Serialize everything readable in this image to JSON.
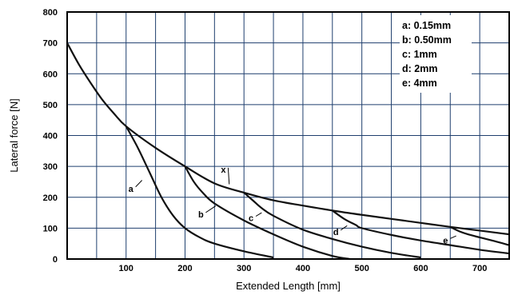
{
  "chart_data": {
    "type": "line",
    "xlabel": "Extended Length [mm]",
    "ylabel": "Lateral force [N]",
    "xlim": [
      0,
      750
    ],
    "ylim": [
      0,
      800
    ],
    "x_ticks": [
      100,
      200,
      300,
      400,
      500,
      600,
      700
    ],
    "y_ticks": [
      0,
      100,
      200,
      300,
      400,
      500,
      600,
      700,
      800
    ],
    "grid": true,
    "legend_position": "top-right",
    "legend": [
      "a: 0.15mm",
      "b: 0.50mm",
      "c: 1mm",
      "d: 2mm",
      "e: 4mm"
    ],
    "series": [
      {
        "name": "x",
        "x": [
          0,
          20,
          40,
          60,
          80,
          100,
          150,
          200,
          250,
          300,
          350,
          400,
          450,
          500,
          550,
          600,
          650,
          700,
          750
        ],
        "y": [
          700,
          630,
          570,
          515,
          470,
          430,
          360,
          300,
          245,
          215,
          190,
          173,
          157,
          143,
          130,
          117,
          104,
          92,
          80
        ]
      },
      {
        "name": "a",
        "x": [
          100,
          120,
          140,
          160,
          180,
          200,
          225,
          250,
          300,
          350
        ],
        "y": [
          430,
          360,
          280,
          200,
          140,
          100,
          70,
          50,
          25,
          5
        ]
      },
      {
        "name": "b",
        "x": [
          200,
          215,
          230,
          250,
          300,
          350,
          400,
          450,
          480
        ],
        "y": [
          300,
          250,
          215,
          180,
          125,
          80,
          40,
          10,
          0
        ]
      },
      {
        "name": "c",
        "x": [
          300,
          315,
          330,
          350,
          400,
          450,
          500,
          550,
          600
        ],
        "y": [
          215,
          190,
          165,
          140,
          95,
          65,
          40,
          20,
          5
        ]
      },
      {
        "name": "d",
        "x": [
          450,
          470,
          490,
          500,
          550,
          600,
          650,
          700,
          750
        ],
        "y": [
          157,
          130,
          110,
          100,
          78,
          60,
          45,
          30,
          18
        ]
      },
      {
        "name": "e",
        "x": [
          650,
          665,
          680,
          700,
          725,
          750
        ],
        "y": [
          104,
          90,
          80,
          70,
          58,
          45
        ]
      }
    ],
    "curve_labels": [
      {
        "text": "x",
        "x": 265,
        "y": 280,
        "ptr_x": 275,
        "ptr_y": 242
      },
      {
        "text": "a",
        "x": 108,
        "y": 218,
        "ptr_x": 127,
        "ptr_y": 255
      },
      {
        "text": "b",
        "x": 227,
        "y": 135,
        "ptr_x": 252,
        "ptr_y": 172
      },
      {
        "text": "c",
        "x": 312,
        "y": 123,
        "ptr_x": 330,
        "ptr_y": 150
      },
      {
        "text": "d",
        "x": 456,
        "y": 78,
        "ptr_x": 475,
        "ptr_y": 108
      },
      {
        "text": "e",
        "x": 642,
        "y": 51,
        "ptr_x": 660,
        "ptr_y": 75
      }
    ]
  }
}
